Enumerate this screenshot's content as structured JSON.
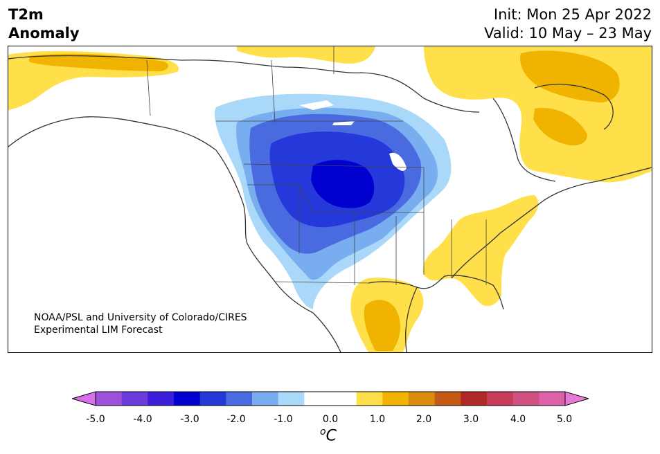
{
  "title": {
    "left_line1": "T2m",
    "left_line2": "Anomaly",
    "right_line1": "Init: Mon 25 Apr 2022",
    "right_line2": "Valid: 10 May – 23 May"
  },
  "credit": {
    "line1": "NOAA/PSL and University of Colorado/CIRES",
    "line2": "Experimental LIM Forecast"
  },
  "colorbar": {
    "ticks": [
      "-5.0",
      "-4.0",
      "-3.0",
      "-2.0",
      "-1.0",
      "0.0",
      "1.0",
      "2.0",
      "3.0",
      "4.0",
      "5.0"
    ],
    "unit_sup": "o",
    "unit": "C",
    "colors": [
      "#d66fe8",
      "#9b52d9",
      "#6a3bd9",
      "#3b1fd9",
      "#0000d0",
      "#2538da",
      "#4a6ae0",
      "#78aef0",
      "#aad8f8",
      "#ffffff",
      "#ffffff",
      "#ffe04a",
      "#f0b400",
      "#dc8a10",
      "#c55a14",
      "#b02828",
      "#c63c58",
      "#d05080",
      "#dc62a8",
      "#e87ad8"
    ]
  },
  "map": {
    "region": "North America",
    "colors": {
      "cold1": "#aad8f8",
      "cold2": "#78aef0",
      "cold3": "#4a6ae0",
      "cold4": "#2538da",
      "cold5": "#0000d0",
      "warm1": "#ffe04a",
      "warm2": "#f0b400"
    }
  }
}
